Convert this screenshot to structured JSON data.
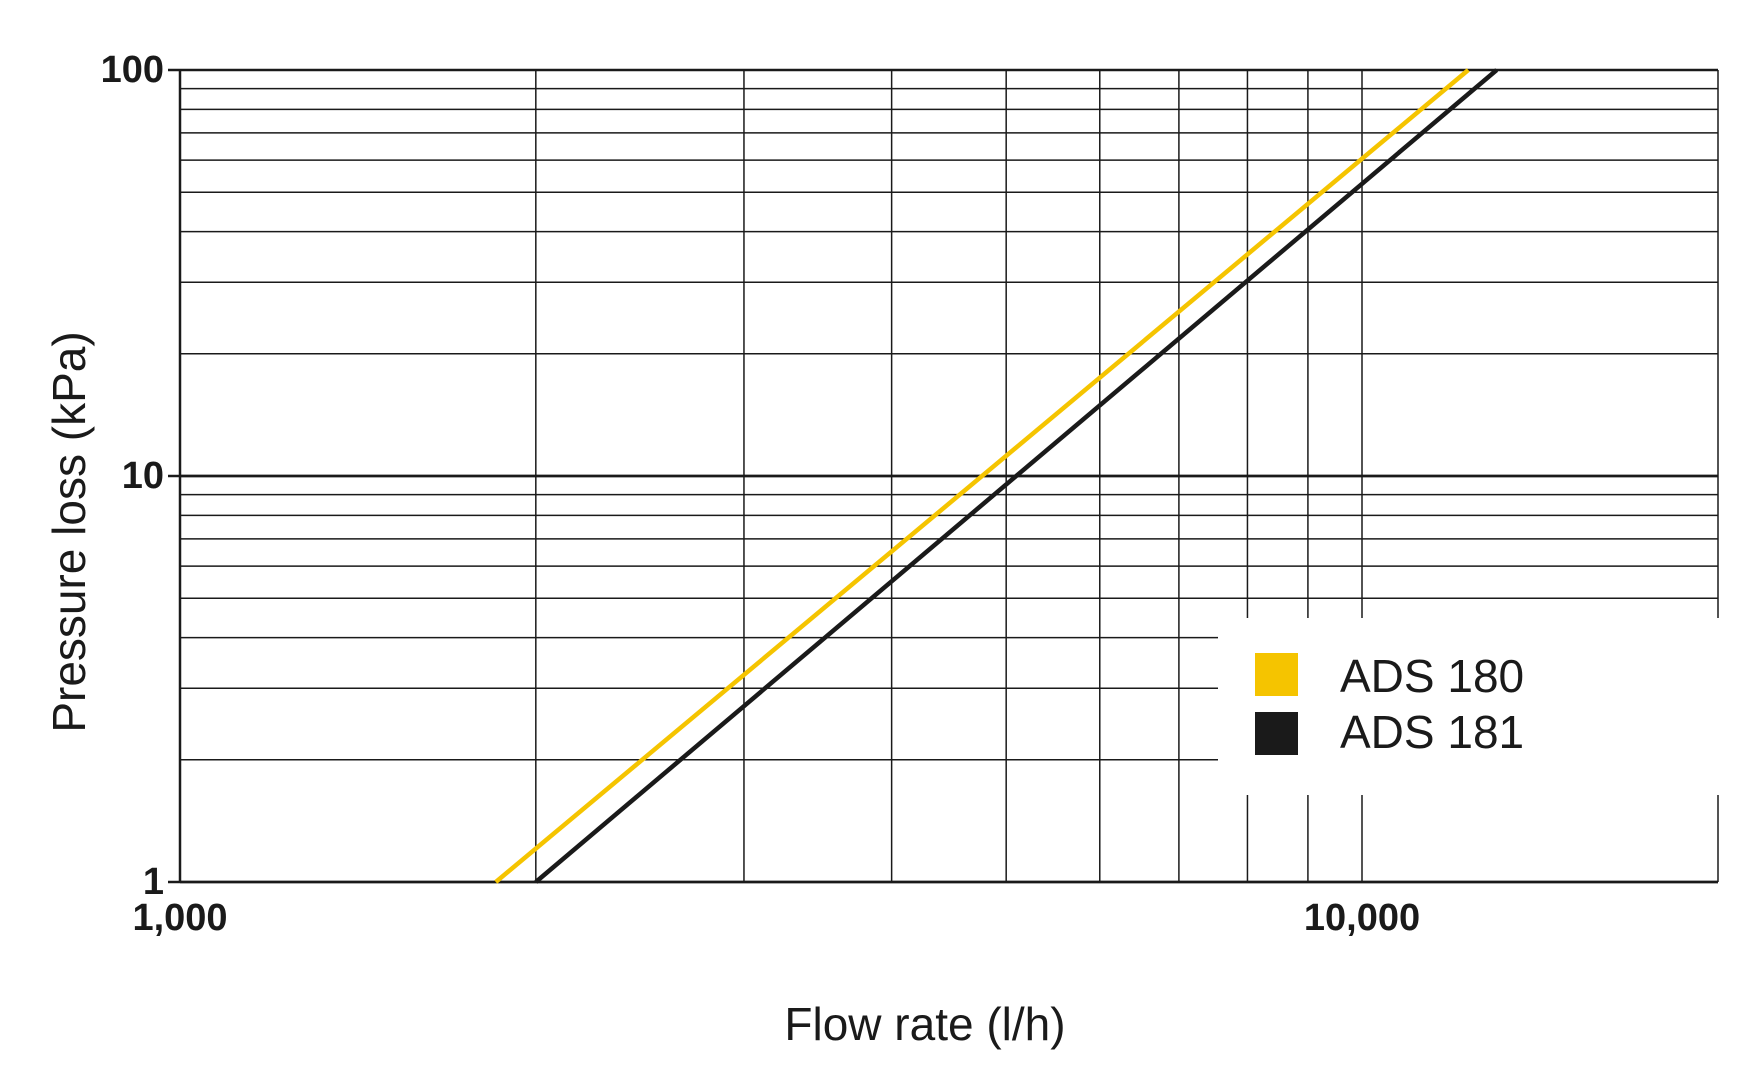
{
  "chart_data": {
    "type": "line",
    "xlabel": "Flow rate (l/h)",
    "ylabel": "Pressure loss (kPa)",
    "x_scale": "log",
    "y_scale": "log",
    "xlim": [
      1000,
      13000
    ],
    "ylim": [
      1,
      100
    ],
    "x_ticks": [
      {
        "value": 1000,
        "label": "1,000"
      },
      {
        "value": 10000,
        "label": "10,000"
      }
    ],
    "y_ticks": [
      {
        "value": 1,
        "label": "1"
      },
      {
        "value": 10,
        "label": "10"
      },
      {
        "value": 100,
        "label": "100"
      }
    ],
    "grid": true,
    "legend_position": "lower-right",
    "series": [
      {
        "name": "ADS 180",
        "color": "#f5c400",
        "x": [
          1850,
          12300
        ],
        "y": [
          1,
          100
        ]
      },
      {
        "name": "ADS 181",
        "color": "#1a1a1a",
        "x": [
          2000,
          13000
        ],
        "y": [
          1,
          100
        ]
      }
    ]
  }
}
